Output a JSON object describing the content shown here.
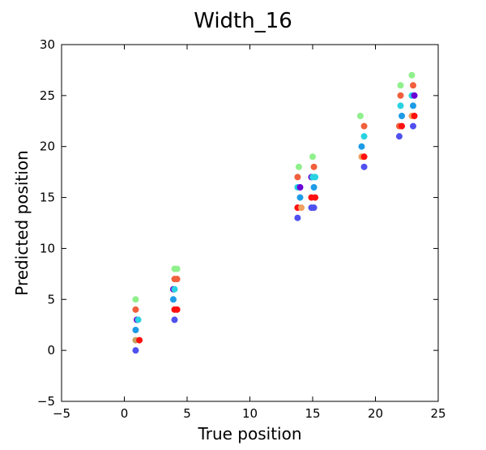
{
  "chart_data": {
    "type": "scatter",
    "title": "Width_16",
    "xlabel": "True position",
    "ylabel": "Predicted position",
    "xlim": [
      -5,
      25
    ],
    "ylim": [
      -5,
      30
    ],
    "xticks": [
      -5,
      0,
      5,
      10,
      15,
      20,
      25
    ],
    "yticks": [
      -5,
      0,
      5,
      10,
      15,
      20,
      25,
      30
    ],
    "grid": false,
    "legend": "none",
    "points": [
      {
        "x": 0.9,
        "y": 0,
        "color": "#5050f0"
      },
      {
        "x": 0.9,
        "y": 1,
        "color": "#c8a060"
      },
      {
        "x": 0.9,
        "y": 2,
        "color": "#1e9be6"
      },
      {
        "x": 1.0,
        "y": 3,
        "color": "#6a00d8"
      },
      {
        "x": 0.9,
        "y": 4,
        "color": "#f0603c"
      },
      {
        "x": 0.9,
        "y": 5,
        "color": "#90f08c"
      },
      {
        "x": 1.2,
        "y": 1,
        "color": "#ff1010"
      },
      {
        "x": 1.1,
        "y": 3,
        "color": "#28d2e0"
      },
      {
        "x": 4.0,
        "y": 3,
        "color": "#5050f0"
      },
      {
        "x": 4.0,
        "y": 4,
        "color": "#ff1010"
      },
      {
        "x": 4.2,
        "y": 4,
        "color": "#ff1010"
      },
      {
        "x": 3.9,
        "y": 5,
        "color": "#1e9be6"
      },
      {
        "x": 3.9,
        "y": 6,
        "color": "#6a00d8"
      },
      {
        "x": 4.0,
        "y": 6,
        "color": "#28d2e0"
      },
      {
        "x": 4.0,
        "y": 7,
        "color": "#f0603c"
      },
      {
        "x": 4.2,
        "y": 7,
        "color": "#f0603c"
      },
      {
        "x": 4.0,
        "y": 8,
        "color": "#90f08c"
      },
      {
        "x": 4.2,
        "y": 8,
        "color": "#90f08c"
      },
      {
        "x": 13.8,
        "y": 13,
        "color": "#5050f0"
      },
      {
        "x": 13.8,
        "y": 14,
        "color": "#ff1010"
      },
      {
        "x": 14.1,
        "y": 14,
        "color": "#f0a060"
      },
      {
        "x": 14.0,
        "y": 15,
        "color": "#1e9be6"
      },
      {
        "x": 13.8,
        "y": 16,
        "color": "#28d2e0"
      },
      {
        "x": 14.0,
        "y": 16,
        "color": "#6a00d8"
      },
      {
        "x": 13.8,
        "y": 17,
        "color": "#f0603c"
      },
      {
        "x": 13.9,
        "y": 18,
        "color": "#90f08c"
      },
      {
        "x": 14.9,
        "y": 14,
        "color": "#5050f0"
      },
      {
        "x": 15.1,
        "y": 14,
        "color": "#5050f0"
      },
      {
        "x": 14.9,
        "y": 15,
        "color": "#ff1010"
      },
      {
        "x": 15.2,
        "y": 15,
        "color": "#ff1010"
      },
      {
        "x": 15.1,
        "y": 16,
        "color": "#1e9be6"
      },
      {
        "x": 14.9,
        "y": 17,
        "color": "#6a00d8"
      },
      {
        "x": 15.0,
        "y": 17,
        "color": "#28d2e0"
      },
      {
        "x": 15.2,
        "y": 17,
        "color": "#28d2e0"
      },
      {
        "x": 15.1,
        "y": 18,
        "color": "#f0603c"
      },
      {
        "x": 15.0,
        "y": 19,
        "color": "#90f08c"
      },
      {
        "x": 19.1,
        "y": 18,
        "color": "#5050f0"
      },
      {
        "x": 18.9,
        "y": 19,
        "color": "#f0a060"
      },
      {
        "x": 19.1,
        "y": 19,
        "color": "#ff1010"
      },
      {
        "x": 18.9,
        "y": 20,
        "color": "#1e9be6"
      },
      {
        "x": 19.1,
        "y": 21,
        "color": "#28d2e0"
      },
      {
        "x": 19.1,
        "y": 22,
        "color": "#f0603c"
      },
      {
        "x": 18.8,
        "y": 23,
        "color": "#90f08c"
      },
      {
        "x": 21.9,
        "y": 21,
        "color": "#5050f0"
      },
      {
        "x": 21.9,
        "y": 22,
        "color": "#f0603c"
      },
      {
        "x": 22.1,
        "y": 22,
        "color": "#ff1010"
      },
      {
        "x": 22.1,
        "y": 23,
        "color": "#1e9be6"
      },
      {
        "x": 22.0,
        "y": 24,
        "color": "#28d2e0"
      },
      {
        "x": 22.0,
        "y": 25,
        "color": "#f0603c"
      },
      {
        "x": 22.0,
        "y": 26,
        "color": "#90f08c"
      },
      {
        "x": 23.0,
        "y": 22,
        "color": "#5050f0"
      },
      {
        "x": 22.9,
        "y": 23,
        "color": "#f0a060"
      },
      {
        "x": 23.1,
        "y": 23,
        "color": "#ff1010"
      },
      {
        "x": 23.0,
        "y": 24,
        "color": "#1e9be6"
      },
      {
        "x": 22.9,
        "y": 25,
        "color": "#28d2e0"
      },
      {
        "x": 23.1,
        "y": 25,
        "color": "#6a00d8"
      },
      {
        "x": 23.0,
        "y": 26,
        "color": "#f0603c"
      },
      {
        "x": 22.9,
        "y": 27,
        "color": "#90f08c"
      }
    ]
  }
}
